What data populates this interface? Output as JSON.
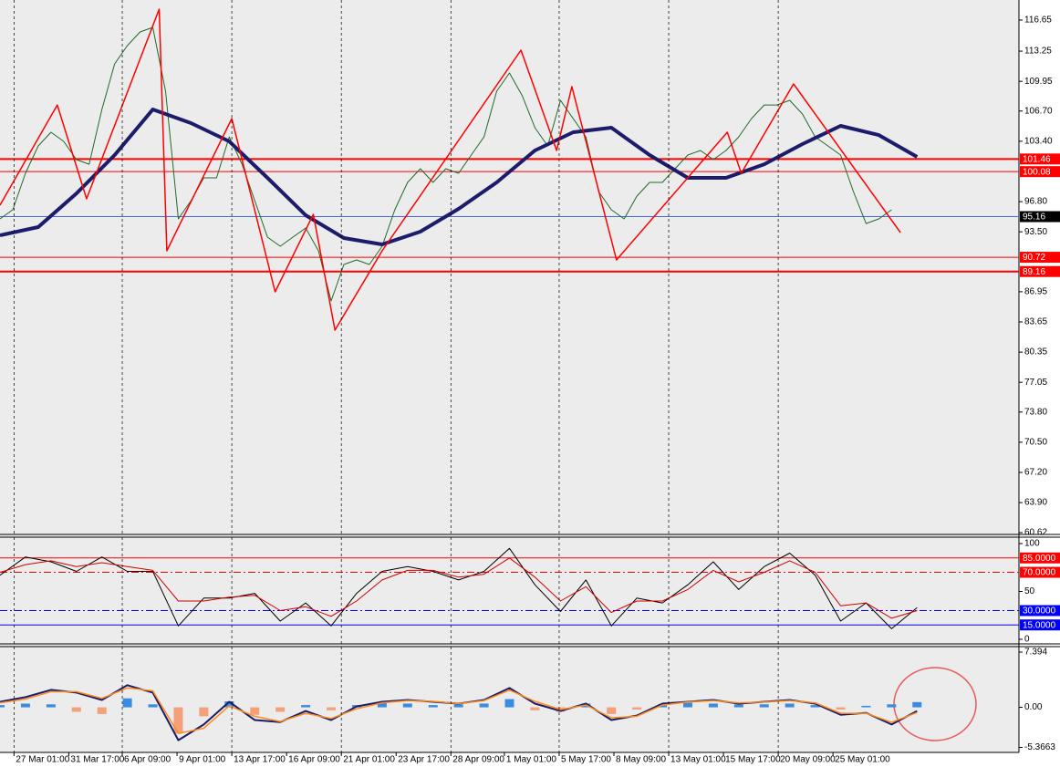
{
  "chart_data": [
    {
      "type": "line",
      "xlim": [
        0,
        80
      ],
      "ylim": [
        60.42,
        118.84
      ],
      "yticks": [
        116.65,
        113.25,
        109.95,
        {
          "value": 106.7,
          "label": "106.70"
        },
        {
          "value": 103.4,
          "label": "103.40"
        },
        {
          "value": 96.8,
          "label": "96.80"
        },
        {
          "value": 93.5,
          "label": "93.50"
        },
        86.95,
        83.65,
        80.35,
        77.05,
        {
          "value": 73.8,
          "label": "73.80"
        },
        {
          "value": 70.5,
          "label": "70.50"
        },
        {
          "value": 67.2,
          "label": "67.20"
        },
        {
          "value": 63.9,
          "label": "63.90"
        },
        60.62
      ],
      "levels": [
        {
          "value": 101.46,
          "color": "#ff0000",
          "width": 2
        },
        {
          "value": 100.08,
          "color": "#ff0000",
          "width": 1
        },
        {
          "value": 95.16,
          "color": "#4169e1",
          "width": 1,
          "label_color": "#000000"
        },
        {
          "value": 90.72,
          "color": "#ff0000",
          "width": 1
        },
        {
          "value": 89.16,
          "color": "#ff0000",
          "width": 2
        }
      ],
      "series": [
        {
          "color": "#1f6b2a",
          "width": 1,
          "values": [
            94.91,
            95.91,
            99.9,
            102.89,
            104.38,
            103.39,
            101.39,
            100.89,
            106.88,
            111.86,
            113.86,
            115.35,
            115.85,
            108.87,
            94.91,
            96.91,
            99.4,
            99.4,
            103.88,
            100.89,
            96.91,
            92.92,
            91.92,
            92.92,
            93.92,
            91.42,
            85.94,
            89.93,
            90.43,
            89.93,
            91.92,
            95.91,
            98.9,
            100.4,
            98.9,
            100.4,
            99.9,
            101.89,
            103.88,
            108.87,
            110.86,
            108.37,
            104.88,
            102.89,
            107.87,
            105.88,
            103.88,
            97.9,
            95.91,
            94.91,
            97.4,
            98.9,
            98.9,
            100.4,
            101.89,
            102.39,
            101.39,
            102.39,
            103.88,
            105.88,
            107.37,
            107.37,
            107.87,
            106.38,
            103.88,
            102.89,
            101.89,
            97.9,
            94.41,
            94.91,
            95.91
          ]
        },
        {
          "color": "#1c1c6b",
          "width": 4,
          "x": [
            0,
            3,
            6,
            9,
            12,
            15,
            18,
            21,
            24,
            27,
            30,
            33,
            36,
            39,
            42,
            45,
            48,
            51,
            54,
            57,
            60,
            63,
            66,
            69,
            72
          ],
          "values": [
            93.12,
            94.02,
            97.7,
            101.89,
            106.88,
            105.38,
            103.39,
            99.4,
            95.31,
            92.82,
            92.12,
            93.52,
            96.01,
            98.9,
            102.39,
            104.38,
            104.88,
            101.89,
            99.4,
            99.4,
            100.89,
            103.09,
            105.08,
            104.08,
            101.69
          ]
        },
        {
          "color": "#ff0000",
          "width": 1.5,
          "x": [
            0,
            4.5,
            6.8,
            12.5,
            13.1,
            18.2,
            21.6,
            24.6,
            26.3,
            30,
            40.9,
            43.7,
            44.9,
            48.4,
            57.1,
            58.2,
            62.3,
            70.7
          ],
          "values": [
            96.41,
            107.37,
            97.11,
            117.84,
            91.42,
            105.88,
            86.94,
            95.41,
            82.75,
            91.42,
            113.36,
            102.39,
            109.37,
            90.43,
            104.38,
            99.9,
            109.67,
            93.42
          ]
        }
      ]
    },
    {
      "type": "line",
      "xlim": [
        0,
        80
      ],
      "ylim": [
        -4.8,
        106.7
      ],
      "yticks": [
        100,
        50,
        0
      ],
      "levels": [
        {
          "value": 85,
          "label": "85.0000",
          "color": "#ff0000",
          "width": 1
        },
        {
          "value": 70,
          "label": "70.0000",
          "color": "#ff0000",
          "width": 1,
          "dash": true
        },
        {
          "value": 30,
          "label": "30.0000",
          "color": "#0000ff",
          "width": 1,
          "dash": true
        },
        {
          "value": 15,
          "label": "15.0000",
          "color": "#0000ff",
          "width": 1
        }
      ],
      "series": [
        {
          "color": "#000000",
          "width": 1,
          "x": [
            0,
            2,
            4,
            6,
            8,
            10,
            12,
            14,
            16,
            18,
            20,
            22,
            24,
            26,
            28,
            30,
            32,
            34,
            36,
            38,
            40,
            42,
            44,
            46,
            48,
            50,
            52,
            54,
            56,
            58,
            60,
            62,
            64,
            66,
            68,
            70,
            72
          ],
          "values": [
            67,
            86,
            81,
            71,
            86,
            71,
            71,
            14,
            43,
            43,
            48,
            19,
            38,
            14,
            48,
            71,
            76,
            71,
            62,
            71,
            95,
            57,
            29,
            62,
            14,
            43,
            38,
            57,
            81,
            52,
            76,
            90,
            67,
            19,
            38,
            11,
            33
          ]
        },
        {
          "color": "#d00000",
          "width": 1,
          "x": [
            0,
            2,
            4,
            6,
            8,
            10,
            12,
            14,
            16,
            18,
            20,
            22,
            24,
            26,
            28,
            30,
            32,
            34,
            36,
            38,
            40,
            42,
            44,
            46,
            48,
            50,
            52,
            54,
            56,
            58,
            60,
            62,
            64,
            66,
            68,
            70,
            72
          ],
          "values": [
            70,
            78,
            82,
            76,
            80,
            76,
            72,
            40,
            40,
            44,
            46,
            30,
            34,
            24,
            40,
            62,
            72,
            72,
            65,
            68,
            85,
            65,
            40,
            55,
            28,
            40,
            40,
            52,
            72,
            60,
            70,
            82,
            70,
            35,
            38,
            22,
            30
          ]
        }
      ]
    },
    {
      "type": "macd",
      "xlim": [
        0,
        80
      ],
      "ylim": [
        -6.04,
        8.13
      ],
      "yticks": [
        7.394,
        {
          "value": 0,
          "label": "0.00"
        },
        -5.3663
      ],
      "xticks": [
        {
          "value": 1.1,
          "label": "27 Mar 01:00"
        },
        {
          "value": 5.4,
          "label": "31 Mar 17:00"
        },
        {
          "value": 9.6,
          "label": "6 Apr 09:00"
        },
        {
          "value": 13.9,
          "label": "9 Apr 01:00"
        },
        {
          "value": 18.2,
          "label": "13 Apr 17:00"
        },
        {
          "value": 22.5,
          "label": "16 Apr 09:00"
        },
        {
          "value": 26.8,
          "label": "21 Apr 01:00"
        },
        {
          "value": 31.1,
          "label": "23 Apr 17:00"
        },
        {
          "value": 35.4,
          "label": "28 Apr 09:00"
        },
        {
          "value": 39.6,
          "label": "1 May 01:00"
        },
        {
          "value": 43.9,
          "label": "5 May 17:00"
        },
        {
          "value": 48.2,
          "label": "8 May 09:00"
        },
        {
          "value": 52.5,
          "label": "13 May 01:00"
        },
        {
          "value": 56.8,
          "label": "15 May 17:00"
        },
        {
          "value": 61.1,
          "label": "20 May 09:00"
        },
        {
          "value": 65.4,
          "label": "25 May 01:00"
        }
      ],
      "histogram": {
        "up_color": "#3b8be0",
        "down_color": "#f4a07a",
        "x": [
          0,
          2,
          4,
          6,
          8,
          10,
          12,
          14,
          16,
          18,
          20,
          22,
          24,
          26,
          28,
          30,
          32,
          34,
          36,
          38,
          40,
          42,
          44,
          46,
          48,
          50,
          52,
          54,
          56,
          58,
          60,
          62,
          64,
          66,
          68,
          70,
          72
        ],
        "values": [
          0.3,
          0.5,
          0.4,
          -0.6,
          -0.9,
          1.2,
          0.4,
          -3.5,
          -1.2,
          0.8,
          -1.0,
          -0.6,
          0.3,
          -0.4,
          0.3,
          0.6,
          0.5,
          0.3,
          0.4,
          0.5,
          1.1,
          -0.4,
          -0.6,
          0.5,
          -0.9,
          -0.3,
          0.4,
          0.6,
          0.5,
          0.4,
          0.4,
          0.5,
          0.3,
          -0.3,
          0.2,
          0.4,
          0.7
        ]
      },
      "series": [
        {
          "color": "#1c1c6b",
          "width": 2,
          "x": [
            0,
            2,
            4,
            6,
            8,
            10,
            12,
            14,
            16,
            18,
            20,
            22,
            24,
            26,
            28,
            30,
            32,
            34,
            36,
            38,
            40,
            42,
            44,
            46,
            48,
            50,
            52,
            54,
            56,
            58,
            60,
            62,
            64,
            66,
            68,
            70,
            72
          ],
          "values": [
            0.74,
            1.36,
            2.34,
            1.97,
            0.99,
            2.96,
            1.97,
            -4.4,
            -2.3,
            0.74,
            -1.7,
            -1.97,
            -0.5,
            -1.7,
            0.12,
            0.74,
            0.99,
            0.74,
            0.49,
            0.99,
            2.59,
            0.49,
            -0.49,
            0.49,
            -1.7,
            -1.1,
            0.49,
            0.74,
            0.99,
            0.49,
            0.74,
            0.99,
            0.49,
            -0.99,
            -0.74,
            -2.3,
            -0.49
          ]
        },
        {
          "color": "#ff8c1a",
          "width": 1.5,
          "x": [
            0,
            2,
            4,
            6,
            8,
            10,
            12,
            14,
            16,
            18,
            20,
            22,
            24,
            26,
            28,
            30,
            32,
            34,
            36,
            38,
            40,
            42,
            44,
            46,
            48,
            50,
            52,
            54,
            56,
            58,
            60,
            62,
            64,
            66,
            68,
            70,
            72
          ],
          "values": [
            0.6,
            1.1,
            2.1,
            2.1,
            1.2,
            2.6,
            2.2,
            -3.5,
            -2.8,
            0.2,
            -1.2,
            -1.9,
            -0.8,
            -1.5,
            -0.2,
            0.6,
            0.9,
            0.8,
            0.5,
            0.9,
            2.3,
            0.8,
            -0.3,
            0.3,
            -1.4,
            -1.2,
            0.3,
            0.7,
            0.9,
            0.6,
            0.7,
            0.9,
            0.6,
            -0.8,
            -0.8,
            -2.0,
            -0.7
          ]
        }
      ]
    }
  ]
}
